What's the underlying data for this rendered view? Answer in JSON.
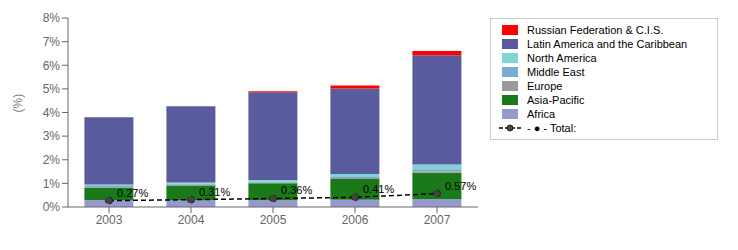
{
  "chart_data": {
    "type": "bar",
    "stacked": true,
    "grid": false,
    "legend": "upper right",
    "categories": [
      "2003",
      "2004",
      "2005",
      "2006",
      "2007"
    ],
    "ylabel": "(%)",
    "ylim": [
      0,
      8
    ],
    "yticks": [
      {
        "value": 0,
        "label": "0%"
      },
      {
        "value": 1,
        "label": "1%"
      },
      {
        "value": 2,
        "label": "2%"
      },
      {
        "value": 3,
        "label": "3%"
      },
      {
        "value": 4,
        "label": "4%"
      },
      {
        "value": 5,
        "label": "5%"
      },
      {
        "value": 6,
        "label": "6%"
      },
      {
        "value": 7,
        "label": "7%"
      },
      {
        "value": 8,
        "label": "8%"
      }
    ],
    "series": [
      {
        "name": "Africa",
        "color": "#9898D0",
        "values": [
          0.3,
          0.29,
          0.29,
          0.31,
          0.33
        ]
      },
      {
        "name": "Asia-Pacific",
        "color": "#1A7A1A",
        "values": [
          0.52,
          0.62,
          0.72,
          0.88,
          1.12
        ]
      },
      {
        "name": "Europe",
        "color": "#9A9A9A",
        "values": [
          0.03,
          0.03,
          0.03,
          0.04,
          0.06
        ]
      },
      {
        "name": "Middle East",
        "color": "#7AADD4",
        "values": [
          0.04,
          0.04,
          0.04,
          0.07,
          0.09
        ]
      },
      {
        "name": "North America",
        "color": "#7FD4D4",
        "values": [
          0.06,
          0.06,
          0.06,
          0.1,
          0.2
        ]
      },
      {
        "name": "Latin America and the Caribbean",
        "color": "#5A5B9F",
        "values": [
          2.85,
          3.22,
          3.72,
          3.62,
          4.62
        ]
      },
      {
        "name": "Russian Federation & C.I.S.",
        "color": "#FF0000",
        "values": [
          0.0,
          0.0,
          0.04,
          0.12,
          0.18
        ]
      },
      {
        "name": "- ● -  Total:",
        "type": "line",
        "color": "#000000",
        "line_style": "dashed",
        "marker": "circle",
        "data_labels": true,
        "values": [
          0.27,
          0.31,
          0.36,
          0.41,
          0.57
        ],
        "value_labels": [
          "0.27%",
          "0.31%",
          "0.36%",
          "0.41%",
          "0.57%"
        ]
      }
    ]
  }
}
